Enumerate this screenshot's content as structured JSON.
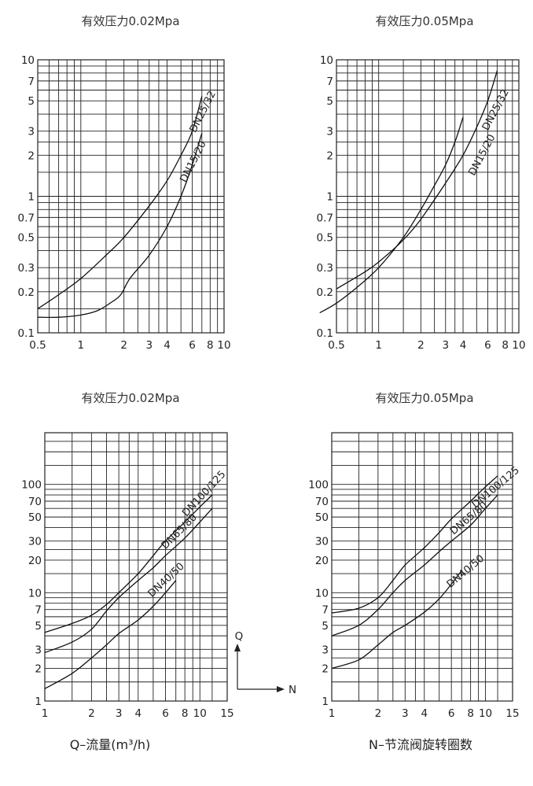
{
  "chart_data": [
    {
      "type": "line",
      "title": "有效压力0.02Mpa",
      "x_scale": "log",
      "y_scale": "log",
      "xlim": [
        0.5,
        10
      ],
      "ylim": [
        0.1,
        10
      ],
      "x_tick_labels": [
        "0.5",
        "1",
        "2",
        "3",
        "4",
        "6",
        "8",
        "10"
      ],
      "y_tick_labels": [
        "0.1",
        "0.2",
        "0.3",
        "0.5",
        "0.7",
        "1",
        "2",
        "3",
        "5",
        "7",
        "10"
      ],
      "series": [
        {
          "name": "DN25/32",
          "x": [
            0.5,
            0.7,
            1.0,
            1.5,
            2.0,
            3.0,
            4.0,
            5.0,
            6.0,
            7.0
          ],
          "y": [
            0.15,
            0.19,
            0.25,
            0.37,
            0.5,
            0.85,
            1.3,
            2.0,
            3.0,
            5.4
          ]
        },
        {
          "name": "DN15/20",
          "x": [
            0.5,
            0.7,
            1.0,
            1.3,
            1.6,
            1.9,
            2.2,
            3.0,
            4.0,
            5.0,
            6.0,
            7.0
          ],
          "y": [
            0.13,
            0.13,
            0.135,
            0.145,
            0.165,
            0.19,
            0.25,
            0.37,
            0.6,
            1.0,
            1.7,
            2.9
          ]
        }
      ]
    },
    {
      "type": "line",
      "title": "有效压力0.05Mpa",
      "x_scale": "log",
      "y_scale": "log",
      "xlim": [
        0.5,
        10
      ],
      "ylim": [
        0.1,
        10
      ],
      "x_tick_labels": [
        "0.5",
        "1",
        "2",
        "3",
        "4",
        "6",
        "8",
        "10"
      ],
      "y_tick_labels": [
        "0.1",
        "0.2",
        "0.3",
        "0.5",
        "0.7",
        "1",
        "2",
        "3",
        "5",
        "7",
        "10"
      ],
      "series": [
        {
          "name": "DN25/32",
          "x": [
            0.5,
            0.8,
            1.0,
            1.5,
            2.0,
            3.0,
            4.0,
            5.0,
            6.0,
            7.0
          ],
          "y": [
            0.21,
            0.28,
            0.33,
            0.48,
            0.68,
            1.25,
            2.0,
            3.2,
            5.0,
            8.3
          ]
        },
        {
          "name": "DN15/20",
          "x": [
            0.38,
            0.5,
            0.7,
            1.0,
            1.5,
            2.0,
            2.5,
            3.0,
            3.5,
            4.0
          ],
          "y": [
            0.14,
            0.165,
            0.215,
            0.3,
            0.5,
            0.8,
            1.2,
            1.7,
            2.5,
            3.8
          ]
        }
      ]
    },
    {
      "type": "line",
      "title": "有效压力0.02Mpa",
      "x_scale": "log",
      "y_scale": "log",
      "xlim": [
        1,
        15
      ],
      "ylim": [
        1,
        300
      ],
      "x_tick_labels": [
        "1",
        "2",
        "3",
        "4",
        "6",
        "8",
        "10",
        "15"
      ],
      "y_tick_labels": [
        "1",
        "2",
        "3",
        "5",
        "7",
        "10",
        "20",
        "30",
        "50",
        "70",
        "100"
      ],
      "xlabel": "Q–流量(m³/h)",
      "series": [
        {
          "name": "DN100/125",
          "x": [
            1.0,
            1.5,
            2.0,
            2.5,
            3.0,
            4.0,
            5.0,
            6.0,
            8.0,
            10.0,
            12.0
          ],
          "y": [
            4.3,
            5.2,
            6.2,
            7.8,
            10.0,
            15.0,
            22.0,
            30.0,
            45.0,
            62.0,
            80.0
          ]
        },
        {
          "name": "DN65/80",
          "x": [
            1.0,
            1.5,
            2.0,
            2.5,
            3.0,
            4.0,
            5.0,
            6.0,
            8.0,
            10.0,
            12.0
          ],
          "y": [
            2.8,
            3.5,
            4.6,
            6.8,
            9.0,
            13.0,
            17.0,
            22.0,
            32.0,
            45.0,
            60.0
          ]
        },
        {
          "name": "DN40/50",
          "x": [
            1.0,
            1.5,
            2.0,
            2.5,
            3.0,
            4.0,
            5.0,
            6.0,
            7.0
          ],
          "y": [
            1.3,
            1.8,
            2.5,
            3.3,
            4.2,
            5.6,
            7.5,
            10.0,
            13.0
          ]
        }
      ]
    },
    {
      "type": "line",
      "title": "有效压力0.05Mpa",
      "x_scale": "log",
      "y_scale": "log",
      "xlim": [
        1,
        15
      ],
      "ylim": [
        1,
        300
      ],
      "x_tick_labels": [
        "1",
        "2",
        "3",
        "4",
        "6",
        "8",
        "10",
        "15"
      ],
      "y_tick_labels": [
        "1",
        "2",
        "3",
        "5",
        "7",
        "10",
        "20",
        "30",
        "50",
        "70",
        "100"
      ],
      "xlabel": "N–节流阀旋转圈数",
      "series": [
        {
          "name": "DN100/125",
          "x": [
            1.0,
            1.5,
            2.0,
            2.5,
            3.0,
            4.0,
            5.0,
            6.0,
            8.0,
            10.0,
            12.0
          ],
          "y": [
            6.5,
            7.2,
            9.0,
            13.0,
            18.0,
            26.0,
            36.0,
            48.0,
            70.0,
            95.0,
            120.0
          ]
        },
        {
          "name": "DN65/80",
          "x": [
            1.0,
            1.5,
            2.0,
            2.5,
            3.0,
            4.0,
            5.0,
            6.0,
            8.0,
            10.0,
            12.0
          ],
          "y": [
            4.0,
            5.0,
            7.0,
            10.0,
            13.0,
            18.0,
            24.0,
            30.0,
            42.0,
            60.0,
            80.0
          ]
        },
        {
          "name": "DN40/50",
          "x": [
            1.0,
            1.5,
            2.0,
            2.5,
            3.0,
            4.0,
            5.0,
            6.0,
            7.0
          ],
          "y": [
            2.0,
            2.4,
            3.3,
            4.3,
            5.0,
            6.6,
            8.8,
            12.0,
            16.0
          ]
        }
      ]
    }
  ],
  "axis_indicator": {
    "y_label": "Q",
    "x_label": "N"
  }
}
